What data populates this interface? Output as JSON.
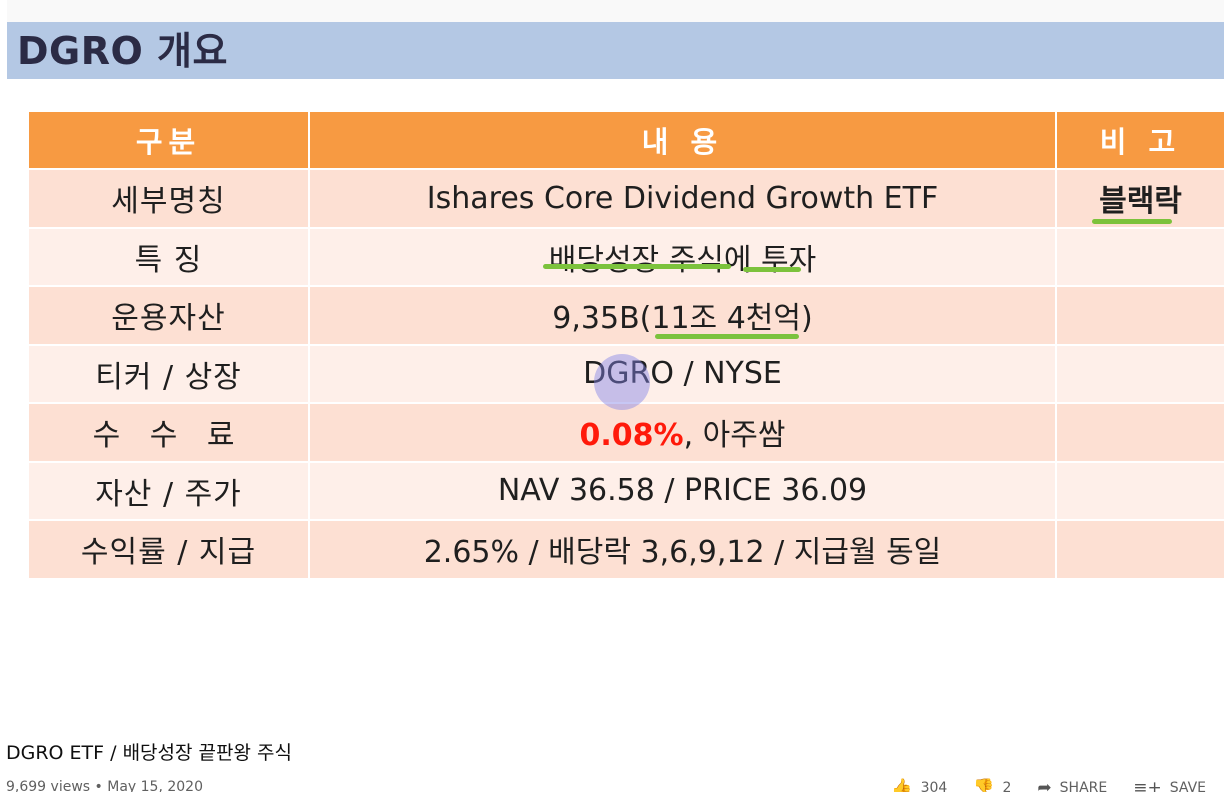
{
  "slide": {
    "title": "DGRO 개요",
    "headers": {
      "category": "구분",
      "content": "내 용",
      "note": "비 고"
    },
    "rows": [
      {
        "label": "세부명칭",
        "content": "Ishares Core Dividend Growth ETF",
        "note": "블랙락"
      },
      {
        "label": "특 징",
        "content": "배당성장 주식에 투자",
        "note": ""
      },
      {
        "label": "운용자산",
        "content": "9,35B(11조 4천억)",
        "note": ""
      },
      {
        "label": "티커 / 상장",
        "content": "DGRO / NYSE",
        "note": ""
      },
      {
        "label": "수 수 료",
        "content_highlight": "0.08%",
        "content_rest": ", 아주쌈",
        "note": ""
      },
      {
        "label": "자산 / 주가",
        "content": "NAV 36.58 / PRICE 36.09",
        "note": ""
      },
      {
        "label": "수익률 / 지급",
        "content": "2.65% / 배당락 3,6,9,12 / 지급월 동일",
        "note": ""
      }
    ],
    "colors": {
      "title_bar": "#b4c8e4",
      "header": "#f79a42",
      "row_odd": "#fde0d3",
      "row_even": "#feefe9",
      "fee_highlight": "#ff1a0a",
      "marker": "#7cc23c"
    }
  },
  "video": {
    "title": "DGRO ETF / 배당성장 끝판왕 주식",
    "views": "9,699 views",
    "date": "May 15, 2020",
    "likes": "304",
    "dislikes": "2",
    "share_label": "SHARE",
    "save_label": "SAVE"
  }
}
